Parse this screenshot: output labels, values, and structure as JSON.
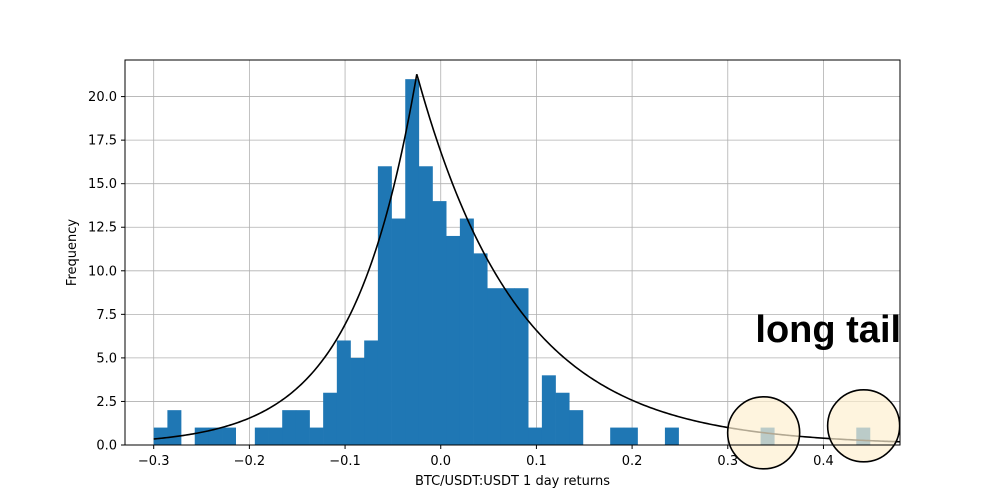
{
  "chart_data": {
    "type": "bar",
    "title": "",
    "xlabel": "BTC/USDT:USDT 1 day returns",
    "ylabel": "Frequency",
    "xlim": [
      -0.33,
      0.48
    ],
    "ylim": [
      0,
      22.1
    ],
    "grid": true,
    "bar_color": "#1f77b4",
    "curve_color": "#000000",
    "highlight_color": "#fdf0d0",
    "xticks": [
      -0.3,
      -0.2,
      -0.1,
      0.0,
      0.1,
      0.2,
      0.3,
      0.4
    ],
    "xtick_labels": [
      "−0.3",
      "−0.2",
      "−0.1",
      "0.0",
      "0.1",
      "0.2",
      "0.3",
      "0.4"
    ],
    "yticks": [
      0,
      2.5,
      5,
      7.5,
      10,
      12.5,
      15,
      17.5,
      20
    ],
    "ytick_labels": [
      "0.0",
      "2.5",
      "5.0",
      "7.5",
      "10.0",
      "12.5",
      "15.0",
      "17.5",
      "20.0"
    ],
    "bins": [
      {
        "x0": -0.3,
        "x1": -0.2857,
        "count": 1
      },
      {
        "x0": -0.2857,
        "x1": -0.2714,
        "count": 2
      },
      {
        "x0": -0.2571,
        "x1": -0.2429,
        "count": 1
      },
      {
        "x0": -0.2429,
        "x1": -0.2286,
        "count": 1
      },
      {
        "x0": -0.2286,
        "x1": -0.2143,
        "count": 1
      },
      {
        "x0": -0.1943,
        "x1": -0.18,
        "count": 1
      },
      {
        "x0": -0.18,
        "x1": -0.1657,
        "count": 1
      },
      {
        "x0": -0.1657,
        "x1": -0.1514,
        "count": 2
      },
      {
        "x0": -0.1514,
        "x1": -0.1371,
        "count": 2
      },
      {
        "x0": -0.1371,
        "x1": -0.1229,
        "count": 1
      },
      {
        "x0": -0.1229,
        "x1": -0.1086,
        "count": 3
      },
      {
        "x0": -0.1086,
        "x1": -0.0943,
        "count": 6
      },
      {
        "x0": -0.0943,
        "x1": -0.08,
        "count": 5
      },
      {
        "x0": -0.08,
        "x1": -0.0657,
        "count": 6
      },
      {
        "x0": -0.0657,
        "x1": -0.0514,
        "count": 16
      },
      {
        "x0": -0.0514,
        "x1": -0.0371,
        "count": 13
      },
      {
        "x0": -0.0371,
        "x1": -0.0229,
        "count": 21
      },
      {
        "x0": -0.0229,
        "x1": -0.0086,
        "count": 16
      },
      {
        "x0": -0.0086,
        "x1": 0.0057,
        "count": 14
      },
      {
        "x0": 0.0057,
        "x1": 0.02,
        "count": 12
      },
      {
        "x0": 0.02,
        "x1": 0.0343,
        "count": 13
      },
      {
        "x0": 0.0343,
        "x1": 0.0486,
        "count": 11
      },
      {
        "x0": 0.0486,
        "x1": 0.0629,
        "count": 9
      },
      {
        "x0": 0.0629,
        "x1": 0.0771,
        "count": 9
      },
      {
        "x0": 0.0771,
        "x1": 0.0914,
        "count": 9
      },
      {
        "x0": 0.0914,
        "x1": 0.1057,
        "count": 1
      },
      {
        "x0": 0.1057,
        "x1": 0.12,
        "count": 4
      },
      {
        "x0": 0.12,
        "x1": 0.1343,
        "count": 3
      },
      {
        "x0": 0.1343,
        "x1": 0.1486,
        "count": 2
      },
      {
        "x0": 0.1771,
        "x1": 0.1914,
        "count": 1
      },
      {
        "x0": 0.1914,
        "x1": 0.2057,
        "count": 1
      },
      {
        "x0": 0.2343,
        "x1": 0.2486,
        "count": 1
      },
      {
        "x0": 0.3343,
        "x1": 0.3486,
        "count": 1
      },
      {
        "x0": 0.4343,
        "x1": 0.4486,
        "count": 1
      }
    ],
    "fit_curve": {
      "type": "laplace",
      "peak_x": -0.025,
      "peak_y": 21.3,
      "scale_left": 0.0667,
      "scale_right": 0.1064,
      "x_start": -0.3,
      "x_end": 0.48
    },
    "highlights": [
      {
        "x": 0.3375,
        "y": 0.7
      },
      {
        "x": 0.442,
        "y": 1.1
      }
    ],
    "annotations": [
      {
        "text": "long tail",
        "x": 0.405,
        "y": 5.9
      }
    ]
  }
}
